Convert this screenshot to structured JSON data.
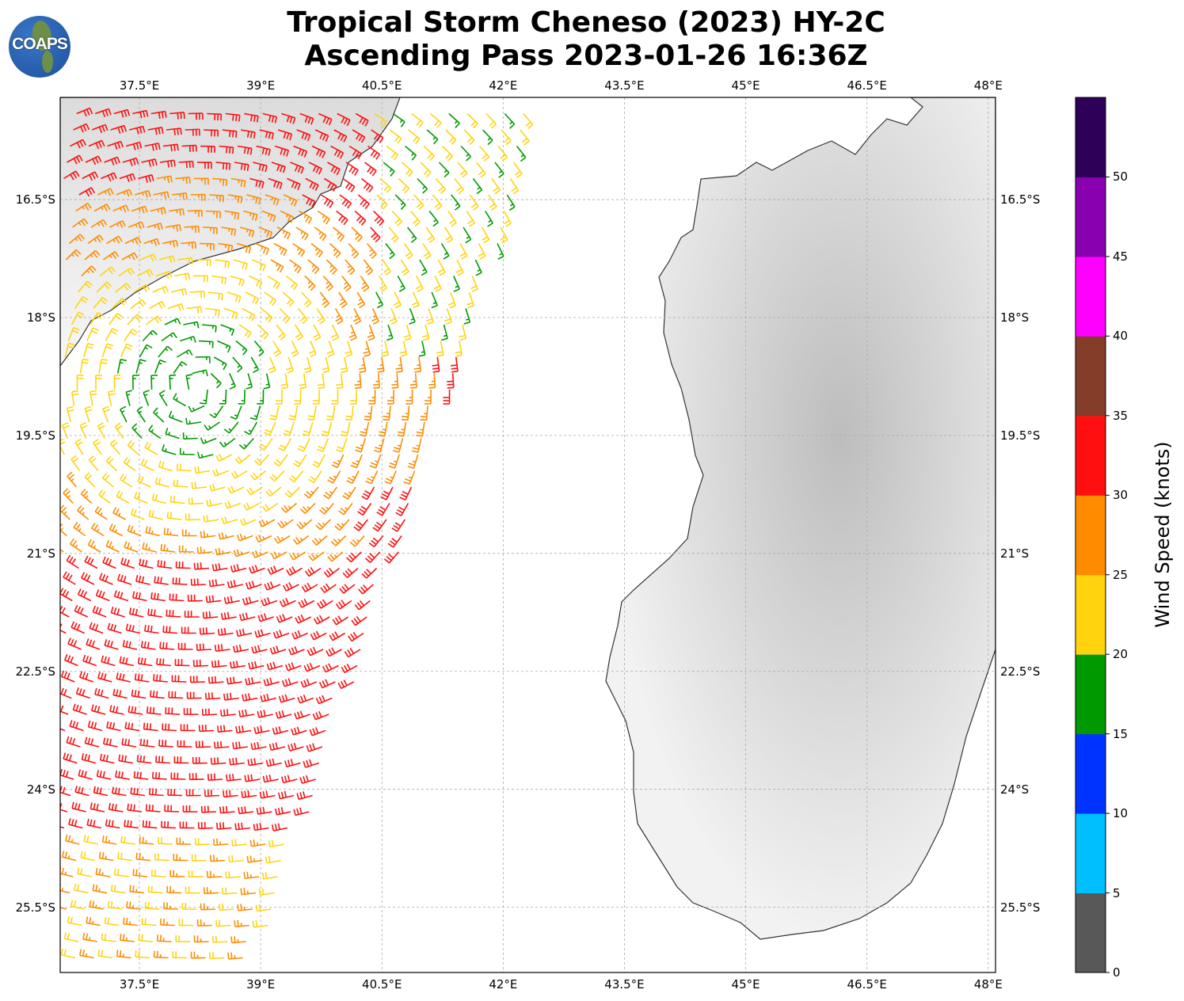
{
  "title": {
    "line1": "Tropical Storm Cheneso (2023) HY-2C",
    "line2": "Ascending Pass 2023-01-26 16:36Z"
  },
  "logo": {
    "text": "COAPS"
  },
  "map": {
    "lon_ticks": [
      "37.5°E",
      "39°E",
      "40.5°E",
      "42°E",
      "43.5°E",
      "45°E",
      "46.5°E",
      "48°E"
    ],
    "lon_values": [
      37.5,
      39,
      40.5,
      42,
      43.5,
      45,
      46.5,
      48
    ],
    "lat_ticks": [
      "16.5°S",
      "18°S",
      "19.5°S",
      "21°S",
      "22.5°S",
      "24°S",
      "25.5°S"
    ],
    "lat_values": [
      16.5,
      18,
      19.5,
      21,
      22.5,
      24,
      25.5
    ],
    "lon_range": [
      36.52,
      48.09
    ],
    "lat_range": [
      15.2,
      26.33
    ]
  },
  "colorbar": {
    "label": "Wind Speed (knots)",
    "tick_labels": [
      "0",
      "5",
      "10",
      "15",
      "20",
      "25",
      "30",
      "35",
      "40",
      "45",
      "50"
    ],
    "bounds": [
      0,
      5,
      10,
      15,
      20,
      25,
      30,
      35,
      40,
      45,
      50,
      55
    ],
    "colors": [
      "#585858",
      "#00bfff",
      "#0033ff",
      "#009900",
      "#ffd40f",
      "#ff8c00",
      "#ff0f0f",
      "#833d28",
      "#ff00ff",
      "#8800b0",
      "#2e0057"
    ]
  },
  "storm": {
    "center_lon": 38.2,
    "center_lat": 18.9
  }
}
